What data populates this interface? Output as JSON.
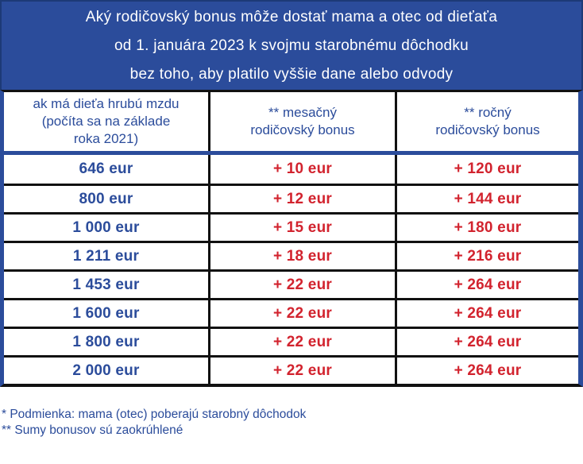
{
  "banner": {
    "lines": [
      "Aký rodičovský bonus môže dostať mama a otec od dieťaťa",
      "od 1. januára 2023 k svojmu starobnému dôchodku",
      "bez toho, aby platilo vyššie dane alebo odvody"
    ]
  },
  "table": {
    "headers": [
      {
        "lines": [
          "ak má dieťa hrubú mzdu",
          "(počíta sa na základe",
          "roka 2021)"
        ]
      },
      {
        "lines": [
          "** mesačný",
          "rodičovský bonus"
        ]
      },
      {
        "lines": [
          "** ročný",
          "rodičovský bonus"
        ]
      }
    ],
    "rows": [
      {
        "wage": "646 eur",
        "monthly": "+ 10 eur",
        "yearly": "+ 120 eur"
      },
      {
        "wage": "800 eur",
        "monthly": "+ 12 eur",
        "yearly": "+ 144 eur"
      },
      {
        "wage": "1 000 eur",
        "monthly": "+ 15 eur",
        "yearly": "+ 180 eur"
      },
      {
        "wage": "1 211 eur",
        "monthly": "+ 18 eur",
        "yearly": "+ 216 eur"
      },
      {
        "wage": "1 453 eur",
        "monthly": "+ 22 eur",
        "yearly": "+ 264 eur"
      },
      {
        "wage": "1 600 eur",
        "monthly": "+ 22 eur",
        "yearly": "+ 264 eur"
      },
      {
        "wage": "1 800 eur",
        "monthly": "+ 22 eur",
        "yearly": "+ 264 eur"
      },
      {
        "wage": "2 000 eur",
        "monthly": "+ 22 eur",
        "yearly": "+ 264 eur"
      }
    ]
  },
  "footnotes": {
    "condition": "* Podmienka: mama (otec) poberajú starobný dôchodok",
    "rounding": "** Sumy bonusov sú zaokrúhlené"
  },
  "colors": {
    "blue": "#2b4c9b",
    "red": "#d2232e",
    "border_black": "#111111",
    "banner_text": "#ffffff"
  },
  "chart_data": {
    "type": "table",
    "title": "Aký rodičovský bonus môže dostať mama a otec od dieťaťa od 1. januára 2023 k svojmu starobnému dôchodku bez toho, aby platilo vyššie dane alebo odvody",
    "columns": [
      "ak má dieťa hrubú mzdu (počíta sa na základe roka 2021)",
      "** mesačný rodičovský bonus",
      "** ročný rodičovský bonus"
    ],
    "rows": [
      [
        "646 eur",
        "+ 10 eur",
        "+ 120 eur"
      ],
      [
        "800 eur",
        "+ 12 eur",
        "+ 144 eur"
      ],
      [
        "1 000 eur",
        "+ 15 eur",
        "+ 180 eur"
      ],
      [
        "1 211 eur",
        "+ 18 eur",
        "+ 216 eur"
      ],
      [
        "1 453 eur",
        "+ 22 eur",
        "+ 264 eur"
      ],
      [
        "1 600 eur",
        "+ 22 eur",
        "+ 264 eur"
      ],
      [
        "1 800 eur",
        "+ 22 eur",
        "+ 264 eur"
      ],
      [
        "2 000 eur",
        "+ 22 eur",
        "+ 264 eur"
      ]
    ],
    "gross_wage_eur": [
      646,
      800,
      1000,
      1211,
      1453,
      1600,
      1800,
      2000
    ],
    "monthly_bonus_eur": [
      10,
      12,
      15,
      18,
      22,
      22,
      22,
      22
    ],
    "yearly_bonus_eur": [
      120,
      144,
      180,
      216,
      264,
      264,
      264,
      264
    ],
    "footnotes": [
      "* Podmienka: mama (otec) poberajú starobný dôchodok",
      "** Sumy bonusov sú zaokrúhlené"
    ]
  }
}
